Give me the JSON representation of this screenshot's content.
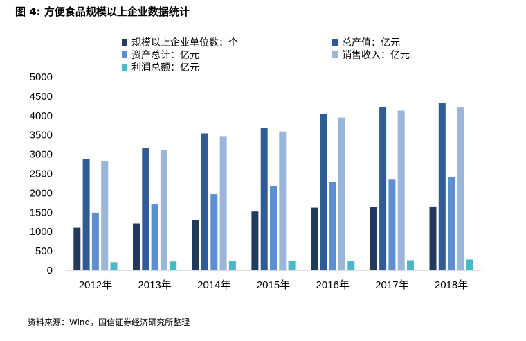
{
  "figure": {
    "title": "图 4:  方便食品规模以上企业数据统计",
    "source": "资料来源：Wind，国信证券经济研究所整理"
  },
  "chart_data": {
    "type": "bar",
    "categories": [
      "2012年",
      "2013年",
      "2014年",
      "2015年",
      "2016年",
      "2017年",
      "2018年"
    ],
    "ylim": [
      0,
      5000
    ],
    "yticks": [
      0,
      500,
      1000,
      1500,
      2000,
      2500,
      3000,
      3500,
      4000,
      4500,
      5000
    ],
    "grid": false,
    "legend_position": "top",
    "series": [
      {
        "name": "规模以上企业单位数：个",
        "color": "#213a5e",
        "values": [
          1100,
          1210,
          1300,
          1520,
          1620,
          1640,
          1650
        ]
      },
      {
        "name": "总产值：亿元",
        "color": "#2f5c95",
        "values": [
          2880,
          3170,
          3540,
          3690,
          4040,
          4220,
          4330
        ]
      },
      {
        "name": "资产总计：亿元",
        "color": "#5b8fd2",
        "values": [
          1490,
          1700,
          1970,
          2170,
          2290,
          2360,
          2410
        ]
      },
      {
        "name": "销售收入：亿元",
        "color": "#9ab6d8",
        "values": [
          2820,
          3110,
          3470,
          3590,
          3950,
          4130,
          4210
        ]
      },
      {
        "name": "利润总额：亿元",
        "color": "#4ab8c8",
        "values": [
          210,
          230,
          240,
          240,
          250,
          260,
          280
        ]
      }
    ]
  }
}
